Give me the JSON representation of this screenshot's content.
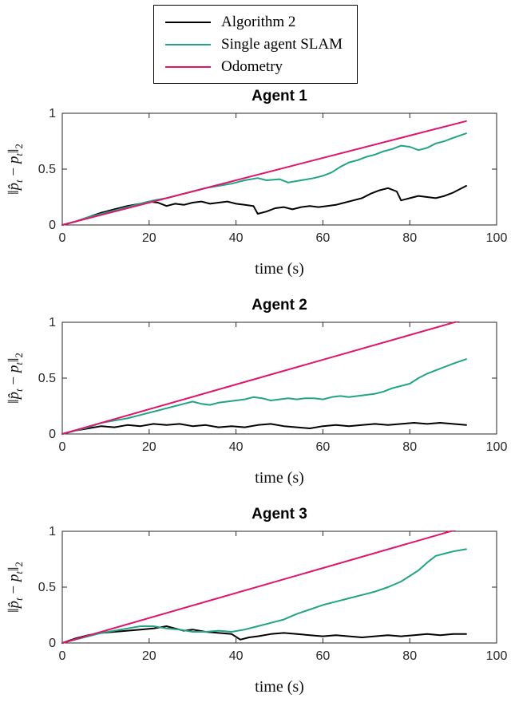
{
  "legend": {
    "items": [
      {
        "label": "Algorithm 2",
        "color": "#000000"
      },
      {
        "label": "Single agent SLAM",
        "color": "#21a486"
      },
      {
        "label": "Odometry",
        "color": "#e0146c"
      }
    ]
  },
  "ylabel_parts": [
    {
      "text": "‖"
    },
    {
      "text": "p̂",
      "italic": true
    },
    {
      "text": "t",
      "italic": true,
      "sub": true
    },
    {
      "text": " − "
    },
    {
      "text": "p",
      "italic": true
    },
    {
      "text": "t",
      "italic": true,
      "sub": true
    },
    {
      "text": "‖"
    },
    {
      "text": "2",
      "sub": true
    }
  ],
  "chart_data": [
    {
      "type": "line",
      "title": "Agent 1",
      "xlabel": "time (s)",
      "ylabel": "‖p̂_t − p_t‖_2",
      "xlim": [
        0,
        100
      ],
      "ylim": [
        0,
        1
      ],
      "xticks": [
        0,
        20,
        40,
        60,
        80,
        100
      ],
      "yticks": [
        0,
        0.5,
        1
      ],
      "grid": false,
      "legend_position": "above-figure",
      "series": [
        {
          "name": "Algorithm 2",
          "color": "#000000",
          "x": [
            0,
            3,
            6,
            9,
            12,
            15,
            18,
            20,
            22,
            24,
            26,
            28,
            30,
            32,
            34,
            36,
            38,
            40,
            42,
            44,
            45,
            47,
            49,
            51,
            53,
            55,
            57,
            59,
            61,
            63,
            65,
            67,
            69,
            71,
            73,
            75,
            77,
            78,
            80,
            82,
            84,
            86,
            88,
            90,
            93
          ],
          "y": [
            0,
            0.03,
            0.07,
            0.11,
            0.14,
            0.17,
            0.19,
            0.21,
            0.2,
            0.17,
            0.19,
            0.18,
            0.2,
            0.21,
            0.19,
            0.2,
            0.21,
            0.19,
            0.18,
            0.17,
            0.1,
            0.12,
            0.15,
            0.16,
            0.14,
            0.16,
            0.17,
            0.16,
            0.17,
            0.18,
            0.2,
            0.22,
            0.24,
            0.28,
            0.31,
            0.33,
            0.3,
            0.22,
            0.24,
            0.26,
            0.25,
            0.24,
            0.26,
            0.29,
            0.35
          ]
        },
        {
          "name": "Single agent SLAM",
          "color": "#21a486",
          "x": [
            0,
            3,
            6,
            9,
            12,
            15,
            18,
            21,
            24,
            27,
            30,
            33,
            36,
            39,
            42,
            45,
            47,
            50,
            52,
            55,
            58,
            60,
            62,
            64,
            66,
            68,
            70,
            72,
            74,
            76,
            78,
            80,
            82,
            84,
            86,
            88,
            90,
            93
          ],
          "y": [
            0,
            0.03,
            0.07,
            0.1,
            0.13,
            0.16,
            0.19,
            0.22,
            0.24,
            0.27,
            0.3,
            0.33,
            0.35,
            0.37,
            0.4,
            0.42,
            0.4,
            0.41,
            0.38,
            0.4,
            0.42,
            0.44,
            0.47,
            0.52,
            0.56,
            0.58,
            0.61,
            0.63,
            0.66,
            0.68,
            0.71,
            0.7,
            0.67,
            0.69,
            0.73,
            0.75,
            0.78,
            0.82
          ]
        },
        {
          "name": "Odometry",
          "color": "#e0146c",
          "x": [
            0,
            93
          ],
          "y": [
            0,
            0.93
          ]
        }
      ]
    },
    {
      "type": "line",
      "title": "Agent 2",
      "xlabel": "time (s)",
      "ylabel": "‖p̂_t − p_t‖_2",
      "xlim": [
        0,
        100
      ],
      "ylim": [
        0,
        1
      ],
      "xticks": [
        0,
        20,
        40,
        60,
        80,
        100
      ],
      "yticks": [
        0,
        0.5,
        1
      ],
      "grid": false,
      "series": [
        {
          "name": "Algorithm 2",
          "color": "#000000",
          "x": [
            0,
            3,
            6,
            9,
            12,
            15,
            18,
            21,
            24,
            27,
            30,
            33,
            36,
            39,
            42,
            45,
            48,
            51,
            54,
            57,
            60,
            63,
            66,
            69,
            72,
            75,
            78,
            81,
            84,
            87,
            90,
            93
          ],
          "y": [
            0,
            0.03,
            0.05,
            0.07,
            0.06,
            0.08,
            0.07,
            0.09,
            0.08,
            0.09,
            0.07,
            0.08,
            0.06,
            0.07,
            0.06,
            0.08,
            0.09,
            0.07,
            0.06,
            0.05,
            0.07,
            0.08,
            0.07,
            0.08,
            0.09,
            0.08,
            0.09,
            0.1,
            0.09,
            0.1,
            0.09,
            0.08
          ]
        },
        {
          "name": "Single agent SLAM",
          "color": "#21a486",
          "x": [
            0,
            3,
            6,
            9,
            12,
            15,
            18,
            20,
            22,
            24,
            26,
            28,
            30,
            32,
            34,
            36,
            38,
            40,
            42,
            44,
            46,
            48,
            50,
            52,
            54,
            56,
            58,
            60,
            62,
            64,
            66,
            68,
            70,
            72,
            74,
            76,
            78,
            80,
            82,
            84,
            86,
            88,
            90,
            93
          ],
          "y": [
            0,
            0.03,
            0.06,
            0.1,
            0.12,
            0.14,
            0.17,
            0.19,
            0.21,
            0.23,
            0.25,
            0.27,
            0.29,
            0.27,
            0.26,
            0.28,
            0.29,
            0.3,
            0.31,
            0.33,
            0.32,
            0.3,
            0.31,
            0.32,
            0.31,
            0.32,
            0.32,
            0.31,
            0.33,
            0.34,
            0.33,
            0.34,
            0.35,
            0.36,
            0.38,
            0.41,
            0.43,
            0.45,
            0.5,
            0.54,
            0.57,
            0.6,
            0.63,
            0.67
          ]
        },
        {
          "name": "Odometry",
          "color": "#e0146c",
          "x": [
            0,
            93
          ],
          "y": [
            0,
            1.03
          ]
        }
      ]
    },
    {
      "type": "line",
      "title": "Agent 3",
      "xlabel": "time (s)",
      "ylabel": "‖p̂_t − p_t‖_2",
      "xlim": [
        0,
        100
      ],
      "ylim": [
        0,
        1
      ],
      "xticks": [
        0,
        20,
        40,
        60,
        80,
        100
      ],
      "yticks": [
        0,
        0.5,
        1
      ],
      "grid": false,
      "series": [
        {
          "name": "Algorithm 2",
          "color": "#000000",
          "x": [
            0,
            3,
            6,
            9,
            12,
            15,
            18,
            21,
            24,
            26,
            28,
            30,
            33,
            36,
            39,
            41,
            43,
            45,
            48,
            51,
            54,
            57,
            60,
            63,
            66,
            69,
            72,
            75,
            78,
            81,
            84,
            87,
            90,
            93
          ],
          "y": [
            0,
            0.04,
            0.07,
            0.09,
            0.1,
            0.11,
            0.12,
            0.13,
            0.15,
            0.13,
            0.11,
            0.12,
            0.1,
            0.09,
            0.08,
            0.03,
            0.05,
            0.06,
            0.08,
            0.09,
            0.08,
            0.07,
            0.06,
            0.07,
            0.06,
            0.05,
            0.06,
            0.07,
            0.06,
            0.07,
            0.08,
            0.07,
            0.08,
            0.08
          ]
        },
        {
          "name": "Single agent SLAM",
          "color": "#21a486",
          "x": [
            0,
            3,
            6,
            9,
            12,
            15,
            18,
            21,
            24,
            27,
            30,
            33,
            36,
            39,
            42,
            45,
            48,
            51,
            54,
            57,
            60,
            63,
            66,
            69,
            72,
            75,
            78,
            80,
            82,
            84,
            86,
            88,
            90,
            93
          ],
          "y": [
            0,
            0.03,
            0.06,
            0.09,
            0.11,
            0.13,
            0.15,
            0.15,
            0.13,
            0.12,
            0.1,
            0.1,
            0.11,
            0.1,
            0.12,
            0.15,
            0.18,
            0.21,
            0.26,
            0.3,
            0.34,
            0.37,
            0.4,
            0.43,
            0.46,
            0.5,
            0.55,
            0.6,
            0.65,
            0.72,
            0.78,
            0.8,
            0.82,
            0.84
          ]
        },
        {
          "name": "Odometry",
          "color": "#e0146c",
          "x": [
            0,
            93
          ],
          "y": [
            0,
            1.04
          ]
        }
      ]
    }
  ]
}
